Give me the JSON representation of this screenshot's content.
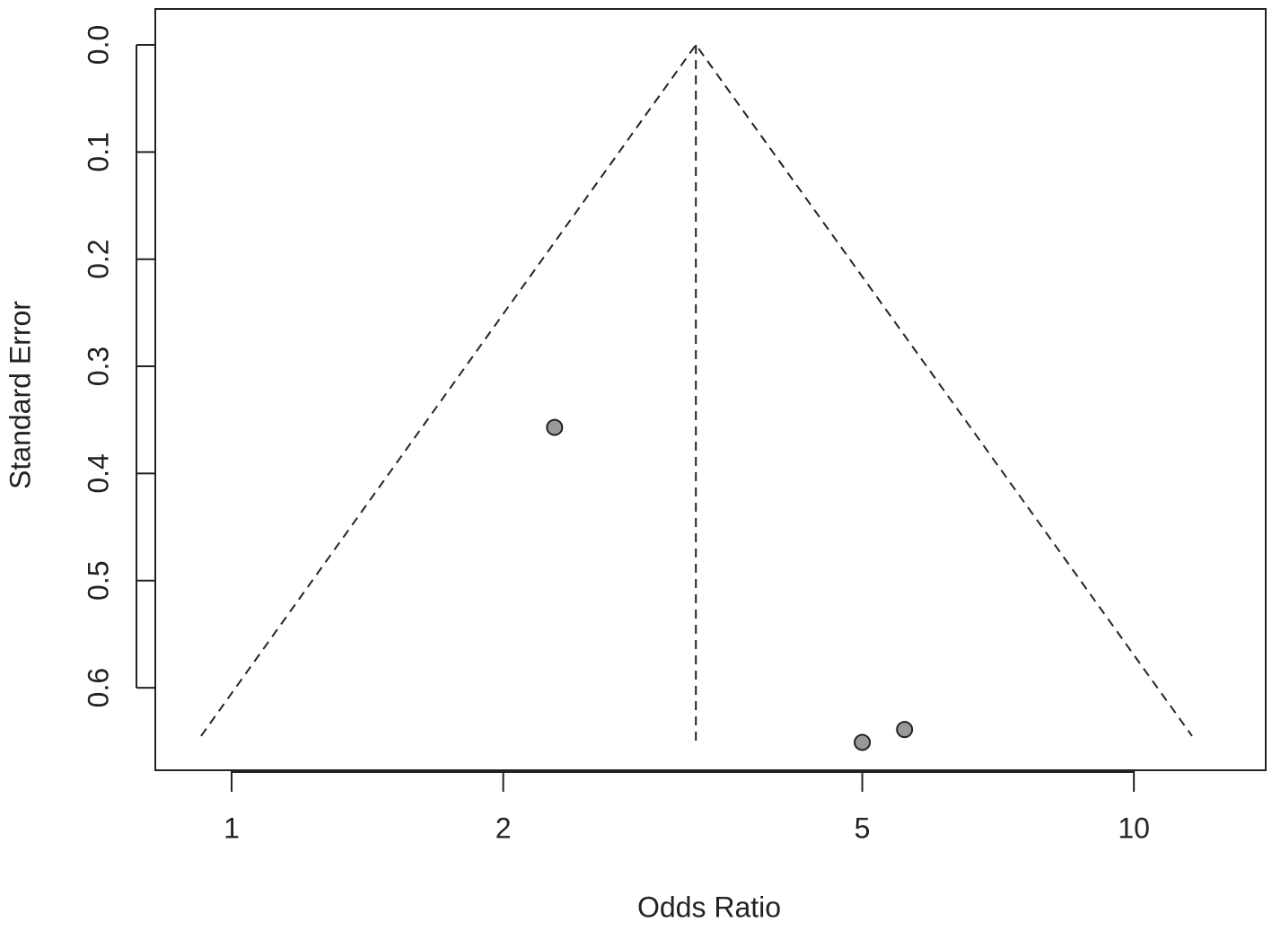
{
  "chart_data": {
    "type": "scatter",
    "xlabel": "Odds Ratio",
    "ylabel": "Standard Error",
    "x": [
      2.28,
      5.0,
      5.57
    ],
    "values": [
      0.357,
      0.651,
      0.639
    ],
    "color": "#999999",
    "xscale": "log",
    "xlim": [
      0.823,
      14.0
    ],
    "xticks": [
      1,
      2,
      5,
      10
    ],
    "ylim": [
      -0.0335,
      0.677
    ],
    "y_inverted": true,
    "yticks": [
      {
        "value": 0,
        "label": "0.0"
      },
      0.1,
      0.2,
      0.3,
      0.4,
      0.5,
      0.6
    ],
    "funnel": {
      "x": [
        0.925,
        3.27,
        11.6
      ],
      "y": [
        0.645,
        0,
        0.645
      ]
    },
    "center_line": {
      "x": [
        3.27,
        3.27
      ],
      "y": [
        0,
        0.652
      ]
    }
  }
}
